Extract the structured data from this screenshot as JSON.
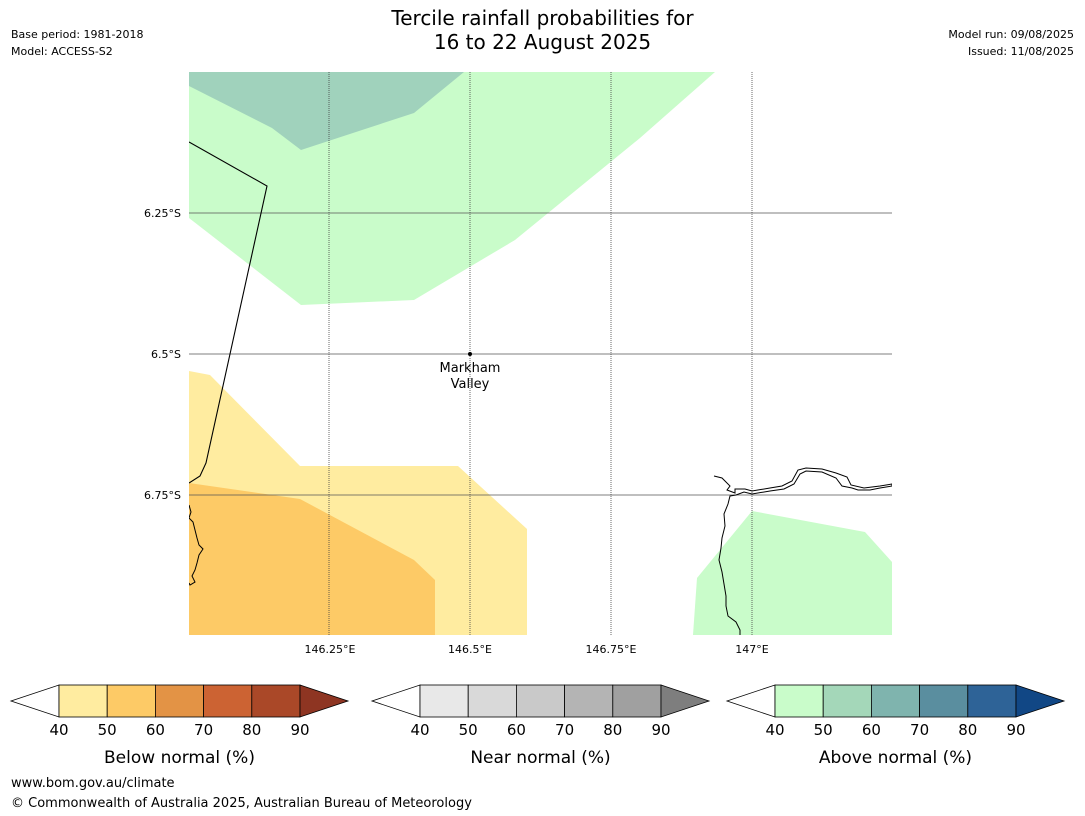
{
  "title_line1": "Tercile rainfall probabilities for",
  "title_line2": "16 to 22 August 2025",
  "meta_left": {
    "base_period": "Base period: 1981-2018",
    "model": "Model: ACCESS-S2"
  },
  "meta_right": {
    "model_run": "Model run: 09/08/2025",
    "issued": "Issued: 11/08/2025"
  },
  "map": {
    "lat_labels": [
      "6.25°S",
      "6.5°S",
      "6.75°S"
    ],
    "lon_labels": [
      "146.25°E",
      "146.5°E",
      "146.75°E",
      "147°E"
    ],
    "place": {
      "line1": "Markham",
      "line2": "Valley"
    }
  },
  "colorbars": [
    {
      "label": "Below normal (%)",
      "ticks": [
        "40",
        "50",
        "60",
        "70",
        "80",
        "90"
      ],
      "colors": [
        "#ffeca0",
        "#fdca66",
        "#e39345",
        "#cc6333",
        "#aa4828",
        "#8e3522"
      ]
    },
    {
      "label": "Near normal (%)",
      "ticks": [
        "40",
        "50",
        "60",
        "70",
        "80",
        "90"
      ],
      "colors": [
        "#e8e8e8",
        "#d9d9d9",
        "#c9c9c9",
        "#b4b4b4",
        "#a0a0a0",
        "#7e7e7e"
      ]
    },
    {
      "label": "Above normal (%)",
      "ticks": [
        "40",
        "50",
        "60",
        "70",
        "80",
        "90"
      ],
      "colors": [
        "#c9fcca",
        "#a4d7b9",
        "#7fb4ae",
        "#5a8e9f",
        "#2e6397",
        "#114785"
      ]
    }
  ],
  "footer": {
    "url": "www.bom.gov.au/climate",
    "copyright": "© Commonwealth of Australia 2025, Australian Bureau of Meteorology"
  }
}
